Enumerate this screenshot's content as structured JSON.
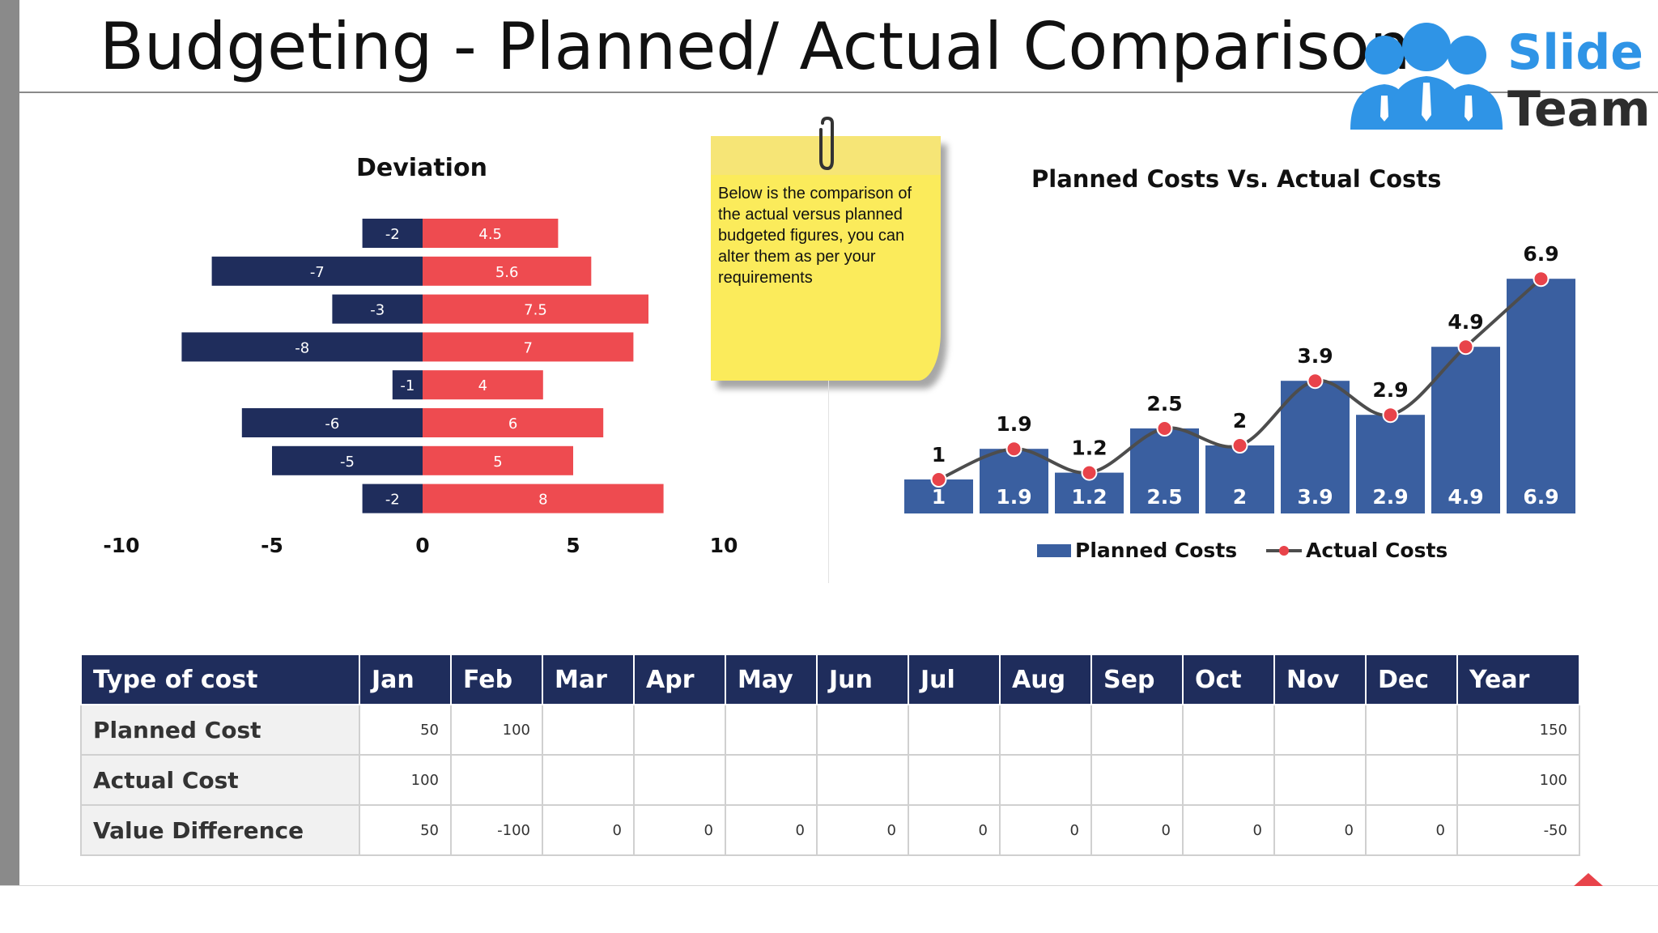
{
  "title": "Budgeting - Planned/ Actual Comparison",
  "logo": {
    "line1": "Slide",
    "line2": "Team"
  },
  "note": {
    "text": "Below is the comparison of the actual versus planned budgeted figures, you can alter them as per your requirements"
  },
  "colors": {
    "navy": "#1f2d5c",
    "red": "#ee4b50",
    "planned_bar": "#3a5fa0",
    "actual_line": "#4d4d4d",
    "actual_marker": "#e8434a",
    "note_yellow": "#fbeb5b"
  },
  "chart_data": [
    {
      "type": "bar",
      "orientation": "horizontal",
      "title": "Deviation",
      "xlim": [
        -10,
        10
      ],
      "xticks": [
        "-10",
        "-5",
        "0",
        "5",
        "10"
      ],
      "grid": false,
      "series": [
        {
          "values": [
            -2,
            -7,
            -3,
            -8,
            -1,
            -6,
            -5,
            -2
          ]
        },
        {
          "values": [
            4.5,
            5.6,
            7.5,
            7,
            4,
            6,
            5,
            8
          ]
        }
      ]
    },
    {
      "type": "bar",
      "title": "Planned Costs Vs. Actual Costs",
      "ylim": [
        0,
        7.5
      ],
      "grid": false,
      "legend": "bottom",
      "series": [
        {
          "name": "Planned Costs",
          "type": "bar",
          "values": [
            1,
            1.9,
            1.2,
            2.5,
            2,
            3.9,
            2.9,
            4.9,
            6.9
          ]
        },
        {
          "name": "Actual Costs",
          "type": "line",
          "values": [
            1,
            1.9,
            1.2,
            2.5,
            2,
            3.9,
            2.9,
            4.9,
            6.9
          ]
        }
      ]
    }
  ],
  "table": {
    "headers": [
      "Type of cost",
      "Jan",
      "Feb",
      "Mar",
      "Apr",
      "May",
      "Jun",
      "Jul",
      "Aug",
      "Sep",
      "Oct",
      "Nov",
      "Dec",
      "Year"
    ],
    "rows": [
      {
        "label": "Planned Cost",
        "cells": [
          "50",
          "100",
          "",
          "",
          "",
          "",
          "",
          "",
          "",
          "",
          "",
          "",
          "150"
        ]
      },
      {
        "label": "Actual Cost",
        "cells": [
          "100",
          "",
          "",
          "",
          "",
          "",
          "",
          "",
          "",
          "",
          "",
          "",
          "100"
        ]
      },
      {
        "label": "Value Difference",
        "cells": [
          "50",
          "-100",
          "0",
          "0",
          "0",
          "0",
          "0",
          "0",
          "0",
          "0",
          "0",
          "0",
          "-50"
        ]
      }
    ]
  }
}
